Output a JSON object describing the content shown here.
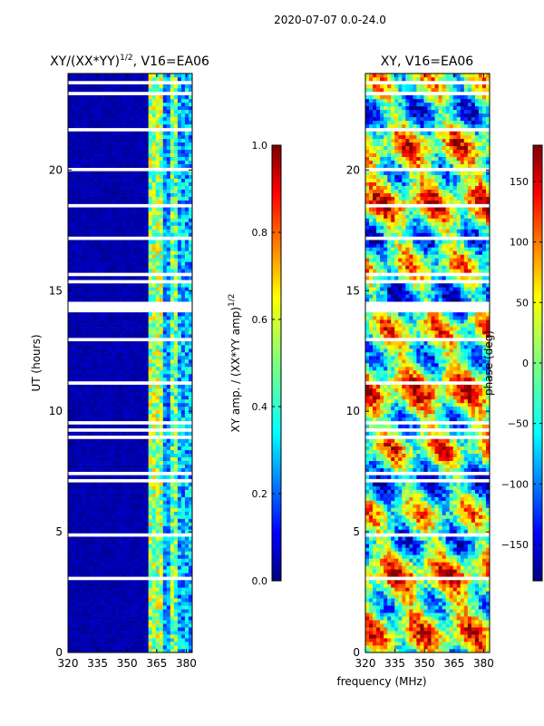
{
  "figure": {
    "suptitle": "2020-07-07 0.0-24.0",
    "shared_xlabel": "frequency (MHz)"
  },
  "chart_data": [
    {
      "type": "heatmap",
      "title_main": "XY/(XX*YY)",
      "title_sup": "1/2",
      "title_tail": ", V16=EA06",
      "xlabel": "frequency (MHz)",
      "ylabel": "UT (hours)",
      "xlim": [
        320,
        383
      ],
      "ylim": [
        0,
        24
      ],
      "xticks": [
        320,
        335,
        350,
        365,
        380
      ],
      "yticks": [
        0,
        5,
        10,
        15,
        20
      ],
      "quantity": "normalized XY amplitude",
      "colorbar": {
        "label_main": "XY amp. / (XX*YY amp)",
        "label_sup": "1/2",
        "range": [
          0.0,
          1.0
        ],
        "ticks": [
          "0.0",
          "0.2",
          "0.4",
          "0.6",
          "0.8",
          "1.0"
        ],
        "tick_values": [
          0.0,
          0.2,
          0.4,
          0.6,
          0.8,
          1.0
        ],
        "colormap": "jet"
      }
    },
    {
      "type": "heatmap",
      "title": "XY, V16=EA06",
      "xlabel": "frequency (MHz)",
      "ylabel": "",
      "xlim": [
        320,
        383
      ],
      "ylim": [
        0,
        24
      ],
      "xticks": [
        320,
        335,
        350,
        365,
        380
      ],
      "yticks": [
        0,
        5,
        10,
        15,
        20
      ],
      "quantity": "XY phase (deg)",
      "colorbar": {
        "label": "phase (deg)",
        "range": [
          -180,
          180
        ],
        "ticks": [
          "−150",
          "−100",
          "−50",
          "0",
          "50",
          "100",
          "150"
        ],
        "tick_values": [
          -150,
          -100,
          -50,
          0,
          50,
          100,
          150
        ],
        "colormap": "jet"
      }
    }
  ],
  "colors": {
    "axis": "#000000",
    "background": "#ffffff",
    "jet": [
      "#00007f",
      "#0000ff",
      "#007fff",
      "#00ffff",
      "#7fff7f",
      "#ffff00",
      "#ff7f00",
      "#ff0000",
      "#7f0000"
    ]
  }
}
